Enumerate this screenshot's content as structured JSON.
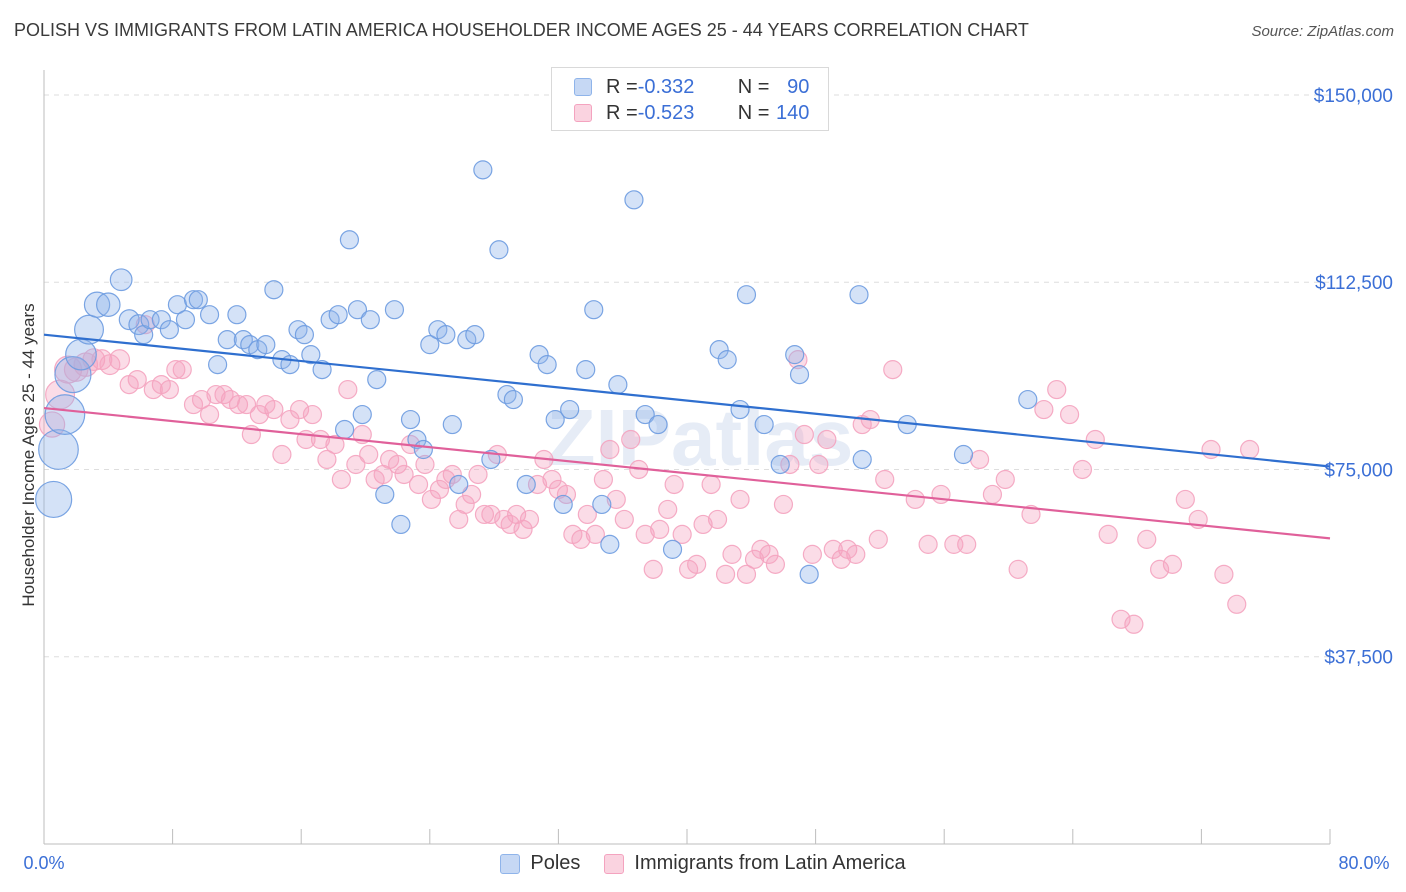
{
  "title": "POLISH VS IMMIGRANTS FROM LATIN AMERICA HOUSEHOLDER INCOME AGES 25 - 44 YEARS CORRELATION CHART",
  "source": "Source: ZipAtlas.com",
  "watermark": "ZIPatlas",
  "legend": {
    "rows": [
      {
        "r_label": "R = ",
        "r_value": "-0.332",
        "n_label": "N = ",
        "n_value": "90"
      },
      {
        "r_label": "R = ",
        "r_value": "-0.523",
        "n_label": "N = ",
        "n_value": "140"
      }
    ]
  },
  "colors": {
    "poles": "#8fb4ea",
    "latin": "#f4a3bf",
    "poles_line": "#2f6fcf",
    "latin_line": "#e0609a",
    "tick_text": "#3b6fd6",
    "grid": "#dedede"
  },
  "chart_data": {
    "type": "scatter",
    "title": "POLISH VS IMMIGRANTS FROM LATIN AMERICA HOUSEHOLDER INCOME AGES 25 - 44 YEARS CORRELATION CHART",
    "xlabel": "",
    "ylabel": "Householder Income Ages 25 - 44 years",
    "xlim": [
      0,
      80
    ],
    "ylim": [
      0,
      155000
    ],
    "x_tick_labels": [
      "0.0%",
      "80.0%"
    ],
    "y_ticks": [
      37500,
      75000,
      112500,
      150000
    ],
    "y_tick_labels": [
      "$37,500",
      "$75,000",
      "$112,500",
      "$150,000"
    ],
    "grid": true,
    "legend_position": "top-center",
    "series": [
      {
        "name": "Poles",
        "R": -0.332,
        "N": 90,
        "trend": {
          "x": [
            0,
            80
          ],
          "y": [
            102000,
            75600
          ]
        },
        "points": [
          [
            0.6,
            69000,
            2
          ],
          [
            0.9,
            79000,
            2.2
          ],
          [
            1.3,
            86000,
            2.2
          ],
          [
            1.8,
            94000,
            2
          ],
          [
            2.3,
            98000,
            1.7
          ],
          [
            2.8,
            103000,
            1.6
          ],
          [
            3.3,
            108000,
            1.4
          ],
          [
            4.0,
            108000,
            1.3
          ],
          [
            4.8,
            113000,
            1.2
          ],
          [
            5.3,
            105000,
            1.1
          ],
          [
            5.9,
            104000,
            1.1
          ],
          [
            6.2,
            102000,
            1
          ],
          [
            6.6,
            105000,
            1
          ],
          [
            7.3,
            105000,
            1
          ],
          [
            7.8,
            103000,
            1
          ],
          [
            8.3,
            108000,
            1
          ],
          [
            8.8,
            105000,
            1
          ],
          [
            9.3,
            109000,
            1
          ],
          [
            9.6,
            109000,
            1
          ],
          [
            10.3,
            106000,
            1
          ],
          [
            10.8,
            96000,
            1
          ],
          [
            11.4,
            101000,
            1
          ],
          [
            12.0,
            106000,
            1
          ],
          [
            12.4,
            101000,
            1
          ],
          [
            12.8,
            100000,
            1
          ],
          [
            13.3,
            99000,
            1
          ],
          [
            13.8,
            100000,
            1
          ],
          [
            14.3,
            111000,
            1
          ],
          [
            14.8,
            97000,
            1
          ],
          [
            15.3,
            96000,
            1
          ],
          [
            15.8,
            103000,
            1
          ],
          [
            16.2,
            102000,
            1
          ],
          [
            16.6,
            98000,
            1
          ],
          [
            17.3,
            95000,
            1
          ],
          [
            17.8,
            105000,
            1
          ],
          [
            18.3,
            106000,
            1
          ],
          [
            18.7,
            83000,
            1
          ],
          [
            19.0,
            121000,
            1
          ],
          [
            19.5,
            107000,
            1
          ],
          [
            19.8,
            86000,
            1
          ],
          [
            20.3,
            105000,
            1
          ],
          [
            20.7,
            93000,
            1
          ],
          [
            21.2,
            70000,
            1
          ],
          [
            21.8,
            107000,
            1
          ],
          [
            22.2,
            64000,
            1
          ],
          [
            22.8,
            85000,
            1
          ],
          [
            23.2,
            81000,
            1
          ],
          [
            23.6,
            79000,
            1
          ],
          [
            24.0,
            100000,
            1
          ],
          [
            24.5,
            103000,
            1
          ],
          [
            25.0,
            102000,
            1
          ],
          [
            25.4,
            84000,
            1
          ],
          [
            25.8,
            72000,
            1
          ],
          [
            26.3,
            101000,
            1
          ],
          [
            26.8,
            102000,
            1
          ],
          [
            27.3,
            135000,
            1
          ],
          [
            27.8,
            77000,
            1
          ],
          [
            28.3,
            119000,
            1
          ],
          [
            28.8,
            90000,
            1
          ],
          [
            29.2,
            89000,
            1
          ],
          [
            30.0,
            72000,
            1
          ],
          [
            30.8,
            98000,
            1
          ],
          [
            31.3,
            96000,
            1
          ],
          [
            31.8,
            85000,
            1
          ],
          [
            32.3,
            68000,
            1
          ],
          [
            32.7,
            87000,
            1
          ],
          [
            33.7,
            95000,
            1
          ],
          [
            34.2,
            107000,
            1
          ],
          [
            34.7,
            68000,
            1
          ],
          [
            35.2,
            60000,
            1
          ],
          [
            35.7,
            92000,
            1
          ],
          [
            36.7,
            129000,
            1
          ],
          [
            37.4,
            86000,
            1
          ],
          [
            38.2,
            84000,
            1
          ],
          [
            39.1,
            59000,
            1
          ],
          [
            42.0,
            99000,
            1
          ],
          [
            42.5,
            97000,
            1
          ],
          [
            43.3,
            87000,
            1
          ],
          [
            43.7,
            110000,
            1
          ],
          [
            44.8,
            84000,
            1
          ],
          [
            45.8,
            76000,
            1
          ],
          [
            46.7,
            98000,
            1
          ],
          [
            47.0,
            94000,
            1
          ],
          [
            47.6,
            54000,
            1
          ],
          [
            50.7,
            110000,
            1
          ],
          [
            50.9,
            77000,
            1
          ],
          [
            53.7,
            84000,
            1
          ],
          [
            57.2,
            78000,
            1
          ],
          [
            61.2,
            89000,
            1
          ]
        ]
      },
      {
        "name": "Immigrants from Latin America",
        "R": -0.523,
        "N": 140,
        "trend": {
          "x": [
            0,
            80
          ],
          "y": [
            87300,
            61200
          ]
        },
        "points": [
          [
            0.5,
            84000,
            1.4
          ],
          [
            1.0,
            90000,
            1.6
          ],
          [
            1.5,
            95000,
            1.5
          ],
          [
            2.0,
            95000,
            1.3
          ],
          [
            2.6,
            96000,
            1.3
          ],
          [
            3.1,
            97000,
            1.2
          ],
          [
            3.6,
            97000,
            1.1
          ],
          [
            4.1,
            96000,
            1.1
          ],
          [
            4.7,
            97000,
            1.1
          ],
          [
            5.3,
            92000,
            1
          ],
          [
            5.8,
            93000,
            1
          ],
          [
            6.3,
            104000,
            1
          ],
          [
            6.8,
            91000,
            1
          ],
          [
            7.3,
            92000,
            1
          ],
          [
            7.8,
            91000,
            1
          ],
          [
            8.2,
            95000,
            1
          ],
          [
            8.6,
            95000,
            1
          ],
          [
            9.3,
            88000,
            1
          ],
          [
            9.8,
            89000,
            1
          ],
          [
            10.3,
            86000,
            1
          ],
          [
            10.7,
            90000,
            1
          ],
          [
            11.2,
            90000,
            1
          ],
          [
            11.6,
            89000,
            1
          ],
          [
            12.1,
            88000,
            1
          ],
          [
            12.6,
            88000,
            1
          ],
          [
            12.9,
            82000,
            1
          ],
          [
            13.4,
            86000,
            1
          ],
          [
            13.8,
            88000,
            1
          ],
          [
            14.3,
            87000,
            1
          ],
          [
            14.8,
            78000,
            1
          ],
          [
            15.3,
            85000,
            1
          ],
          [
            15.9,
            87000,
            1
          ],
          [
            16.3,
            81000,
            1
          ],
          [
            16.7,
            86000,
            1
          ],
          [
            17.2,
            81000,
            1
          ],
          [
            17.6,
            77000,
            1
          ],
          [
            18.1,
            80000,
            1
          ],
          [
            18.5,
            73000,
            1
          ],
          [
            18.9,
            91000,
            1
          ],
          [
            19.4,
            76000,
            1
          ],
          [
            19.8,
            82000,
            1
          ],
          [
            20.2,
            78000,
            1
          ],
          [
            20.6,
            73000,
            1
          ],
          [
            21.1,
            74000,
            1
          ],
          [
            21.5,
            77000,
            1
          ],
          [
            22.0,
            76000,
            1
          ],
          [
            22.4,
            74000,
            1
          ],
          [
            22.8,
            80000,
            1
          ],
          [
            23.3,
            72000,
            1
          ],
          [
            23.7,
            76000,
            1
          ],
          [
            24.1,
            69000,
            1
          ],
          [
            24.6,
            71000,
            1
          ],
          [
            25.0,
            73000,
            1
          ],
          [
            25.4,
            74000,
            1
          ],
          [
            25.8,
            65000,
            1
          ],
          [
            26.2,
            68000,
            1
          ],
          [
            26.6,
            70000,
            1
          ],
          [
            27.0,
            74000,
            1
          ],
          [
            27.4,
            66000,
            1
          ],
          [
            27.8,
            66000,
            1
          ],
          [
            28.2,
            78000,
            1
          ],
          [
            28.6,
            65000,
            1
          ],
          [
            29.0,
            64000,
            1
          ],
          [
            29.4,
            66000,
            1
          ],
          [
            29.8,
            63000,
            1
          ],
          [
            30.2,
            65000,
            1
          ],
          [
            30.7,
            72000,
            1
          ],
          [
            31.1,
            77000,
            1
          ],
          [
            31.6,
            73000,
            1
          ],
          [
            32.0,
            71000,
            1
          ],
          [
            32.5,
            70000,
            1
          ],
          [
            32.9,
            62000,
            1
          ],
          [
            33.4,
            61000,
            1
          ],
          [
            33.8,
            66000,
            1
          ],
          [
            34.3,
            62000,
            1
          ],
          [
            34.8,
            73000,
            1
          ],
          [
            35.2,
            79000,
            1
          ],
          [
            35.6,
            69000,
            1
          ],
          [
            36.1,
            65000,
            1
          ],
          [
            36.5,
            81000,
            1
          ],
          [
            37.0,
            75000,
            1
          ],
          [
            37.4,
            62000,
            1
          ],
          [
            37.9,
            55000,
            1
          ],
          [
            38.3,
            63000,
            1
          ],
          [
            38.8,
            67000,
            1
          ],
          [
            39.2,
            72000,
            1
          ],
          [
            39.7,
            62000,
            1
          ],
          [
            40.1,
            55000,
            1
          ],
          [
            40.6,
            56000,
            1
          ],
          [
            41.0,
            64000,
            1
          ],
          [
            41.5,
            72000,
            1
          ],
          [
            41.9,
            65000,
            1
          ],
          [
            42.4,
            54000,
            1
          ],
          [
            42.8,
            58000,
            1
          ],
          [
            43.3,
            69000,
            1
          ],
          [
            43.7,
            54000,
            1
          ],
          [
            44.2,
            57000,
            1
          ],
          [
            44.6,
            59000,
            1
          ],
          [
            45.1,
            58000,
            1
          ],
          [
            45.5,
            56000,
            1
          ],
          [
            46.0,
            68000,
            1
          ],
          [
            46.4,
            76000,
            1
          ],
          [
            46.9,
            97000,
            1
          ],
          [
            47.3,
            82000,
            1
          ],
          [
            47.8,
            58000,
            1
          ],
          [
            48.2,
            76000,
            1
          ],
          [
            48.7,
            81000,
            1
          ],
          [
            49.1,
            59000,
            1
          ],
          [
            49.6,
            57000,
            1
          ],
          [
            50.0,
            59000,
            1
          ],
          [
            50.5,
            58000,
            1
          ],
          [
            50.9,
            84000,
            1
          ],
          [
            51.4,
            85000,
            1
          ],
          [
            51.9,
            61000,
            1
          ],
          [
            52.3,
            73000,
            1
          ],
          [
            52.8,
            95000,
            1
          ],
          [
            54.2,
            69000,
            1
          ],
          [
            55.0,
            60000,
            1
          ],
          [
            55.8,
            70000,
            1
          ],
          [
            56.6,
            60000,
            1
          ],
          [
            57.4,
            60000,
            1
          ],
          [
            58.2,
            77000,
            1
          ],
          [
            59.0,
            70000,
            1
          ],
          [
            59.8,
            73000,
            1
          ],
          [
            60.6,
            55000,
            1
          ],
          [
            61.4,
            66000,
            1
          ],
          [
            62.2,
            87000,
            1
          ],
          [
            63.0,
            91000,
            1
          ],
          [
            63.8,
            86000,
            1
          ],
          [
            64.6,
            75000,
            1
          ],
          [
            65.4,
            81000,
            1
          ],
          [
            66.2,
            62000,
            1
          ],
          [
            67.0,
            45000,
            1
          ],
          [
            67.8,
            44000,
            1
          ],
          [
            68.6,
            61000,
            1
          ],
          [
            69.4,
            55000,
            1
          ],
          [
            70.2,
            56000,
            1
          ],
          [
            71.0,
            69000,
            1
          ],
          [
            71.8,
            65000,
            1
          ],
          [
            72.6,
            79000,
            1
          ],
          [
            73.4,
            54000,
            1
          ],
          [
            74.2,
            48000,
            1
          ],
          [
            75.0,
            79000,
            1
          ]
        ]
      }
    ]
  }
}
